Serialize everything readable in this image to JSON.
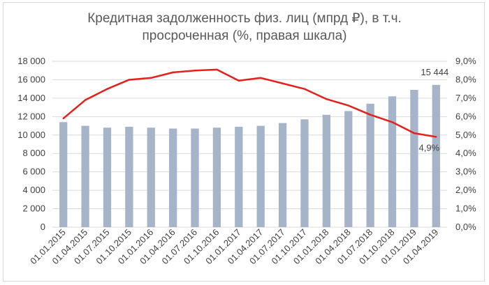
{
  "chart_data": {
    "type": "bar+line",
    "title_lines": [
      "Кредитная задолженность  физ. лиц  (мпрд ₽), в т.ч.",
      "просроченная (%, правая шкала)"
    ],
    "categories": [
      "01.01.2015",
      "01.04.2015",
      "01.07.2015",
      "01.10.2015",
      "01.01.2016",
      "01.04.2016",
      "01.07.2016",
      "01.10.2016",
      "01.01.2017",
      "01.04.2017",
      "01.07.2017",
      "01.10.2017",
      "01.01.2018",
      "01.04.2018",
      "01.07.2018",
      "01.10.2018",
      "01.01.2019",
      "01.04.2019"
    ],
    "series": [
      {
        "axis": "left",
        "type": "bar",
        "color": "#a5b4c9",
        "values": [
          11400,
          11000,
          10800,
          10900,
          10800,
          10700,
          10700,
          10800,
          10900,
          11000,
          11300,
          11700,
          12200,
          12600,
          13400,
          14200,
          14900,
          15444
        ]
      },
      {
        "axis": "right",
        "type": "line",
        "color": "#e3201b",
        "values": [
          5.9,
          6.9,
          7.5,
          8.0,
          8.1,
          8.4,
          8.5,
          8.55,
          7.95,
          8.1,
          7.8,
          7.5,
          6.95,
          6.6,
          6.1,
          5.7,
          5.1,
          4.9
        ]
      }
    ],
    "y_left": {
      "min": 0,
      "max": 18000,
      "step": 2000,
      "tick_labels": [
        "0",
        "2 000",
        "4 000",
        "6 000",
        "8 000",
        "10 000",
        "12 000",
        "14 000",
        "16 000",
        "18 000"
      ]
    },
    "y_right": {
      "min": 0,
      "max": 9,
      "step": 1,
      "tick_labels": [
        "0,0%",
        "1,0%",
        "2,0%",
        "3,0%",
        "4,0%",
        "5,0%",
        "6,0%",
        "7,0%",
        "8,0%",
        "9,0%"
      ]
    },
    "data_labels": {
      "last_bar": "15 444",
      "last_line": "4,9%"
    },
    "grid": true,
    "legend": "none"
  }
}
